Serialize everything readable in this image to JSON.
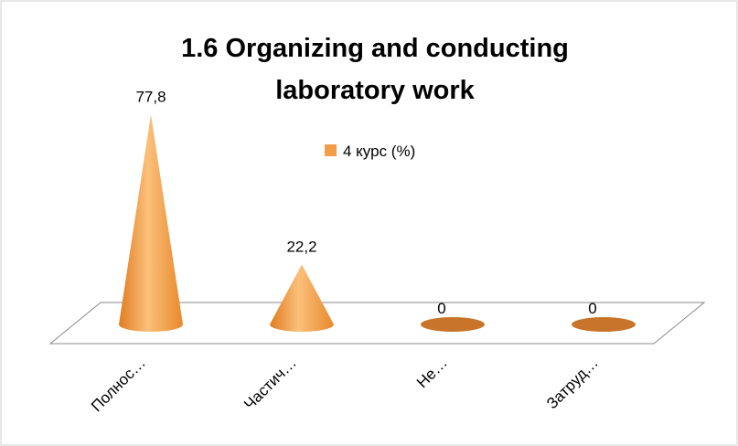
{
  "chart_data": {
    "type": "cone",
    "title": "1.6 Organizing and conducting laboratory work",
    "categories": [
      "Полнос…",
      "Частич…",
      "Не…",
      "Затруд…"
    ],
    "series": [
      {
        "name": "4 курс (%)",
        "color": "#f39c4a",
        "values": [
          77.8,
          22.2,
          0,
          0
        ],
        "value_labels": [
          "77,8",
          "22,2",
          "0",
          "0"
        ]
      }
    ]
  }
}
